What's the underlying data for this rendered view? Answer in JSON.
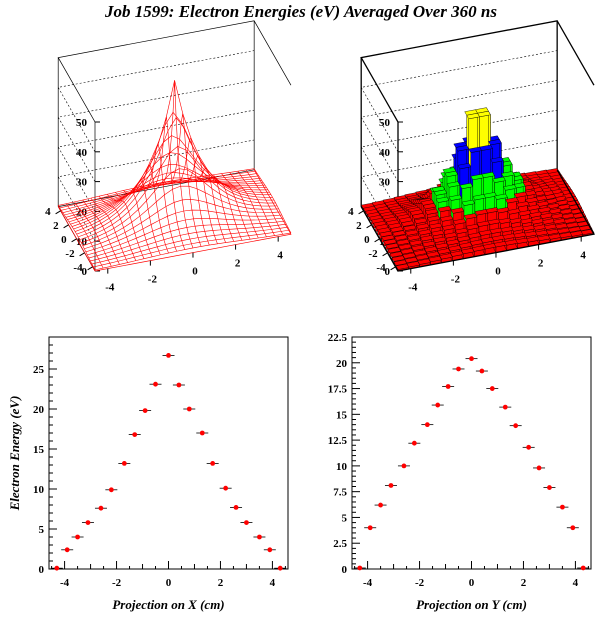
{
  "title": "Job 1599: Electron Energies (eV) Averaged Over 360 ns",
  "colors": {
    "mesh": "#ff0000",
    "marker": "#ff0000",
    "bands": [
      "#ff0000",
      "#00ff00",
      "#0000ff",
      "#ffff00",
      "#ff00ff",
      "#3399cc"
    ]
  },
  "chart_data": [
    {
      "type": "surface",
      "style": "lego-wireframe",
      "zlim": [
        0,
        50
      ],
      "z_ticks": [
        "0",
        "10",
        "20",
        "30",
        "40",
        "50"
      ],
      "x_ticks": [
        "-4",
        "-2",
        "0",
        "2",
        "4"
      ],
      "y_ticks": [
        "-4",
        "-2",
        "0",
        "2",
        "4"
      ],
      "peak": 47
    },
    {
      "type": "surface",
      "style": "lego-colored",
      "zlim": [
        0,
        50
      ],
      "z_ticks": [
        "0",
        "10",
        "20",
        "30",
        "40",
        "50"
      ],
      "x_ticks": [
        "-4",
        "-2",
        "0",
        "2",
        "4"
      ],
      "y_ticks": [
        "-4",
        "-2",
        "0",
        "2",
        "4"
      ],
      "peak": 48,
      "color_levels": [
        0,
        10,
        20,
        30,
        40
      ]
    },
    {
      "type": "scatter",
      "xlabel": "Projection on X (cm)",
      "ylabel": "Electron Energy (eV)",
      "xlim": [
        -4.6,
        4.6
      ],
      "ylim": [
        0,
        29
      ],
      "x_ticks": [
        -4,
        -2,
        0,
        2,
        4
      ],
      "y_ticks": [
        0,
        5,
        10,
        15,
        20,
        25
      ],
      "x": [
        -4.3,
        -3.9,
        -3.5,
        -3.1,
        -2.6,
        -2.2,
        -1.7,
        -1.3,
        -0.9,
        -0.5,
        0.0,
        0.4,
        0.8,
        1.3,
        1.7,
        2.2,
        2.6,
        3.0,
        3.5,
        3.9,
        4.3
      ],
      "y": [
        0.1,
        2.4,
        4.0,
        5.8,
        7.6,
        9.9,
        13.2,
        16.8,
        19.8,
        23.1,
        26.7,
        23.0,
        20.0,
        17.0,
        13.2,
        10.1,
        7.7,
        5.8,
        4.0,
        2.4,
        0.1
      ]
    },
    {
      "type": "scatter",
      "xlabel": "Projection on Y (cm)",
      "ylabel": "",
      "xlim": [
        -4.6,
        4.6
      ],
      "ylim": [
        0,
        22.5
      ],
      "x_ticks": [
        -4,
        -2,
        0,
        2,
        4
      ],
      "y_ticks": [
        0,
        2.5,
        5,
        7.5,
        10,
        12.5,
        15,
        17.5,
        20,
        22.5
      ],
      "x": [
        -4.3,
        -3.9,
        -3.5,
        -3.1,
        -2.6,
        -2.2,
        -1.7,
        -1.3,
        -0.9,
        -0.5,
        0.0,
        0.4,
        0.8,
        1.3,
        1.7,
        2.2,
        2.6,
        3.0,
        3.5,
        3.9,
        4.3
      ],
      "y": [
        0.1,
        4.0,
        6.2,
        8.1,
        10.0,
        12.2,
        14.0,
        15.9,
        17.7,
        19.4,
        20.4,
        19.2,
        17.5,
        15.7,
        13.9,
        11.8,
        9.8,
        7.9,
        6.0,
        4.0,
        0.1
      ]
    }
  ]
}
